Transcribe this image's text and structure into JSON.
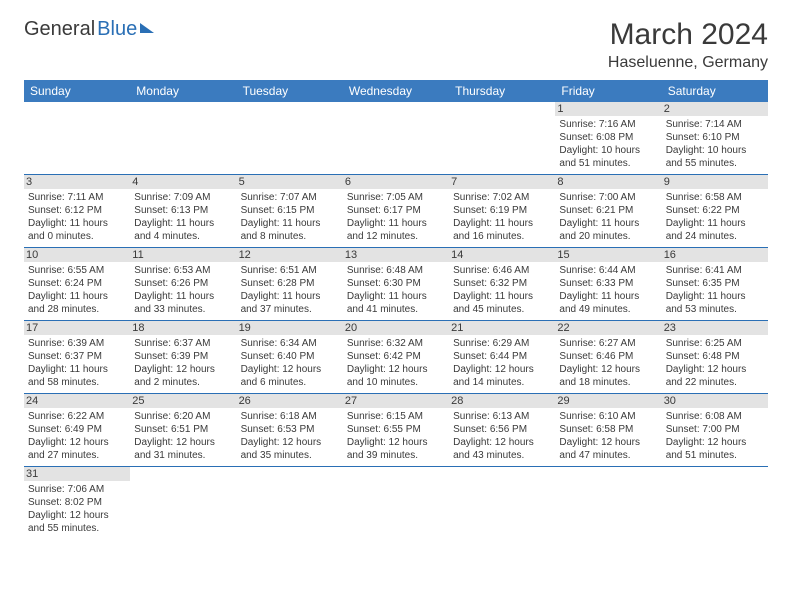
{
  "logo": {
    "part1": "General",
    "part2": "Blue"
  },
  "title": "March 2024",
  "location": "Haseluenne, Germany",
  "dayHeaders": [
    "Sunday",
    "Monday",
    "Tuesday",
    "Wednesday",
    "Thursday",
    "Friday",
    "Saturday"
  ],
  "colors": {
    "header_bg": "#3b7bbf",
    "header_text": "#ffffff",
    "daynum_bg": "#e3e3e3",
    "rule": "#2a6fb5",
    "text": "#3a3a3a",
    "logo_blue": "#2a6fb5"
  },
  "weeks": [
    [
      null,
      null,
      null,
      null,
      null,
      {
        "n": "1",
        "sr": "Sunrise: 7:16 AM",
        "ss": "Sunset: 6:08 PM",
        "d1": "Daylight: 10 hours",
        "d2": "and 51 minutes."
      },
      {
        "n": "2",
        "sr": "Sunrise: 7:14 AM",
        "ss": "Sunset: 6:10 PM",
        "d1": "Daylight: 10 hours",
        "d2": "and 55 minutes."
      }
    ],
    [
      {
        "n": "3",
        "sr": "Sunrise: 7:11 AM",
        "ss": "Sunset: 6:12 PM",
        "d1": "Daylight: 11 hours",
        "d2": "and 0 minutes."
      },
      {
        "n": "4",
        "sr": "Sunrise: 7:09 AM",
        "ss": "Sunset: 6:13 PM",
        "d1": "Daylight: 11 hours",
        "d2": "and 4 minutes."
      },
      {
        "n": "5",
        "sr": "Sunrise: 7:07 AM",
        "ss": "Sunset: 6:15 PM",
        "d1": "Daylight: 11 hours",
        "d2": "and 8 minutes."
      },
      {
        "n": "6",
        "sr": "Sunrise: 7:05 AM",
        "ss": "Sunset: 6:17 PM",
        "d1": "Daylight: 11 hours",
        "d2": "and 12 minutes."
      },
      {
        "n": "7",
        "sr": "Sunrise: 7:02 AM",
        "ss": "Sunset: 6:19 PM",
        "d1": "Daylight: 11 hours",
        "d2": "and 16 minutes."
      },
      {
        "n": "8",
        "sr": "Sunrise: 7:00 AM",
        "ss": "Sunset: 6:21 PM",
        "d1": "Daylight: 11 hours",
        "d2": "and 20 minutes."
      },
      {
        "n": "9",
        "sr": "Sunrise: 6:58 AM",
        "ss": "Sunset: 6:22 PM",
        "d1": "Daylight: 11 hours",
        "d2": "and 24 minutes."
      }
    ],
    [
      {
        "n": "10",
        "sr": "Sunrise: 6:55 AM",
        "ss": "Sunset: 6:24 PM",
        "d1": "Daylight: 11 hours",
        "d2": "and 28 minutes."
      },
      {
        "n": "11",
        "sr": "Sunrise: 6:53 AM",
        "ss": "Sunset: 6:26 PM",
        "d1": "Daylight: 11 hours",
        "d2": "and 33 minutes."
      },
      {
        "n": "12",
        "sr": "Sunrise: 6:51 AM",
        "ss": "Sunset: 6:28 PM",
        "d1": "Daylight: 11 hours",
        "d2": "and 37 minutes."
      },
      {
        "n": "13",
        "sr": "Sunrise: 6:48 AM",
        "ss": "Sunset: 6:30 PM",
        "d1": "Daylight: 11 hours",
        "d2": "and 41 minutes."
      },
      {
        "n": "14",
        "sr": "Sunrise: 6:46 AM",
        "ss": "Sunset: 6:32 PM",
        "d1": "Daylight: 11 hours",
        "d2": "and 45 minutes."
      },
      {
        "n": "15",
        "sr": "Sunrise: 6:44 AM",
        "ss": "Sunset: 6:33 PM",
        "d1": "Daylight: 11 hours",
        "d2": "and 49 minutes."
      },
      {
        "n": "16",
        "sr": "Sunrise: 6:41 AM",
        "ss": "Sunset: 6:35 PM",
        "d1": "Daylight: 11 hours",
        "d2": "and 53 minutes."
      }
    ],
    [
      {
        "n": "17",
        "sr": "Sunrise: 6:39 AM",
        "ss": "Sunset: 6:37 PM",
        "d1": "Daylight: 11 hours",
        "d2": "and 58 minutes."
      },
      {
        "n": "18",
        "sr": "Sunrise: 6:37 AM",
        "ss": "Sunset: 6:39 PM",
        "d1": "Daylight: 12 hours",
        "d2": "and 2 minutes."
      },
      {
        "n": "19",
        "sr": "Sunrise: 6:34 AM",
        "ss": "Sunset: 6:40 PM",
        "d1": "Daylight: 12 hours",
        "d2": "and 6 minutes."
      },
      {
        "n": "20",
        "sr": "Sunrise: 6:32 AM",
        "ss": "Sunset: 6:42 PM",
        "d1": "Daylight: 12 hours",
        "d2": "and 10 minutes."
      },
      {
        "n": "21",
        "sr": "Sunrise: 6:29 AM",
        "ss": "Sunset: 6:44 PM",
        "d1": "Daylight: 12 hours",
        "d2": "and 14 minutes."
      },
      {
        "n": "22",
        "sr": "Sunrise: 6:27 AM",
        "ss": "Sunset: 6:46 PM",
        "d1": "Daylight: 12 hours",
        "d2": "and 18 minutes."
      },
      {
        "n": "23",
        "sr": "Sunrise: 6:25 AM",
        "ss": "Sunset: 6:48 PM",
        "d1": "Daylight: 12 hours",
        "d2": "and 22 minutes."
      }
    ],
    [
      {
        "n": "24",
        "sr": "Sunrise: 6:22 AM",
        "ss": "Sunset: 6:49 PM",
        "d1": "Daylight: 12 hours",
        "d2": "and 27 minutes."
      },
      {
        "n": "25",
        "sr": "Sunrise: 6:20 AM",
        "ss": "Sunset: 6:51 PM",
        "d1": "Daylight: 12 hours",
        "d2": "and 31 minutes."
      },
      {
        "n": "26",
        "sr": "Sunrise: 6:18 AM",
        "ss": "Sunset: 6:53 PM",
        "d1": "Daylight: 12 hours",
        "d2": "and 35 minutes."
      },
      {
        "n": "27",
        "sr": "Sunrise: 6:15 AM",
        "ss": "Sunset: 6:55 PM",
        "d1": "Daylight: 12 hours",
        "d2": "and 39 minutes."
      },
      {
        "n": "28",
        "sr": "Sunrise: 6:13 AM",
        "ss": "Sunset: 6:56 PM",
        "d1": "Daylight: 12 hours",
        "d2": "and 43 minutes."
      },
      {
        "n": "29",
        "sr": "Sunrise: 6:10 AM",
        "ss": "Sunset: 6:58 PM",
        "d1": "Daylight: 12 hours",
        "d2": "and 47 minutes."
      },
      {
        "n": "30",
        "sr": "Sunrise: 6:08 AM",
        "ss": "Sunset: 7:00 PM",
        "d1": "Daylight: 12 hours",
        "d2": "and 51 minutes."
      }
    ],
    [
      {
        "n": "31",
        "sr": "Sunrise: 7:06 AM",
        "ss": "Sunset: 8:02 PM",
        "d1": "Daylight: 12 hours",
        "d2": "and 55 minutes."
      },
      null,
      null,
      null,
      null,
      null,
      null
    ]
  ]
}
